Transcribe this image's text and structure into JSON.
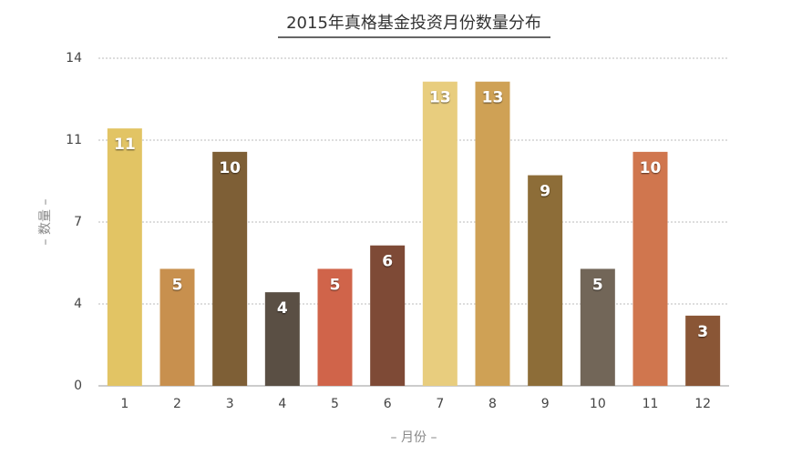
{
  "chart_data": {
    "type": "bar",
    "title": "2015年真格基金投资月份数量分布",
    "x_label": "– 月份 –",
    "y_label": "– 数量 –",
    "categories": [
      "1",
      "2",
      "3",
      "4",
      "5",
      "6",
      "7",
      "8",
      "9",
      "10",
      "11",
      "12"
    ],
    "values": [
      11,
      5,
      10,
      4,
      5,
      6,
      13,
      13,
      9,
      5,
      10,
      3
    ],
    "colors": [
      "#e2c464",
      "#c8904e",
      "#7e5f36",
      "#5a4f44",
      "#d0644a",
      "#7e4a36",
      "#e8cd7e",
      "#cfa155",
      "#8d6d38",
      "#726658",
      "#d0764e",
      "#8a5636"
    ],
    "ylim": [
      0,
      14
    ],
    "yticks": [
      0,
      {
        "value": 3.5,
        "label": "4"
      },
      7,
      {
        "value": 10.5,
        "label": "11"
      },
      14
    ],
    "grid": true
  }
}
